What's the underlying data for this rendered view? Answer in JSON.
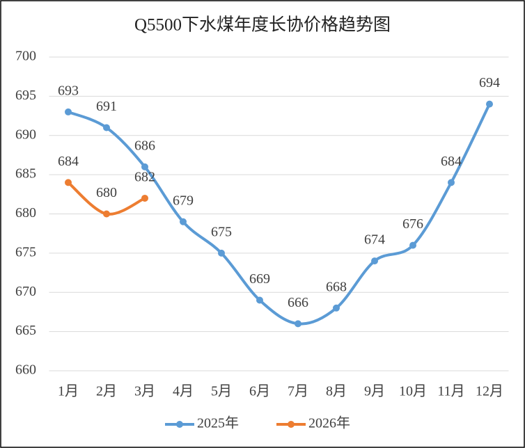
{
  "chart_data": {
    "type": "line",
    "title": "Q5500下水煤年度长协价格趋势图",
    "categories": [
      "1月",
      "2月",
      "3月",
      "4月",
      "5月",
      "6月",
      "7月",
      "8月",
      "9月",
      "10月",
      "11月",
      "12月"
    ],
    "series": [
      {
        "name": "2025年",
        "color": "#5b9bd5",
        "values": [
          693,
          691,
          686,
          679,
          675,
          669,
          666,
          668,
          674,
          676,
          684,
          694
        ]
      },
      {
        "name": "2026年",
        "color": "#ed7d31",
        "values": [
          684,
          680,
          682,
          null,
          null,
          null,
          null,
          null,
          null,
          null,
          null,
          null
        ]
      }
    ],
    "ylim": [
      660,
      700
    ],
    "yticks": [
      660,
      665,
      670,
      675,
      680,
      685,
      690,
      695,
      700
    ],
    "grid": true,
    "legend": "bottom"
  }
}
